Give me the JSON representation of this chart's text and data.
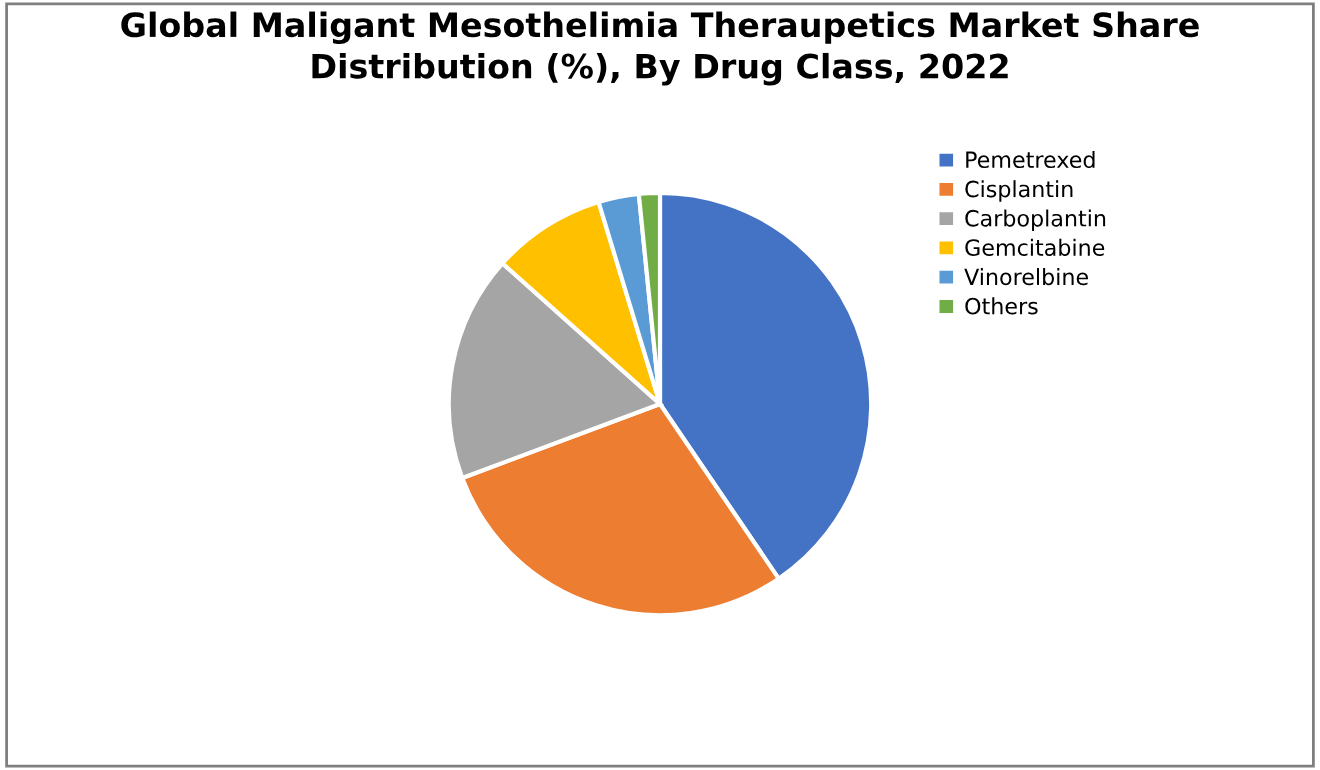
{
  "chart_data": {
    "type": "pie",
    "title": "Global Maligant Mesothelimia Theraupetics Market Share\nDistribution (%), By Drug Class, 2022",
    "categories": [
      "Pemetrexed",
      "Cisplantin",
      "Carboplantin",
      "Gemcitabine",
      "Vinorelbine",
      "Others"
    ],
    "values": [
      40.5,
      28.8,
      17.3,
      8.7,
      3.1,
      1.6
    ],
    "colors": [
      "#4472c4",
      "#ed7d31",
      "#a5a5a5",
      "#ffc000",
      "#5b9bd5",
      "#70ad47"
    ],
    "legend": "right"
  }
}
